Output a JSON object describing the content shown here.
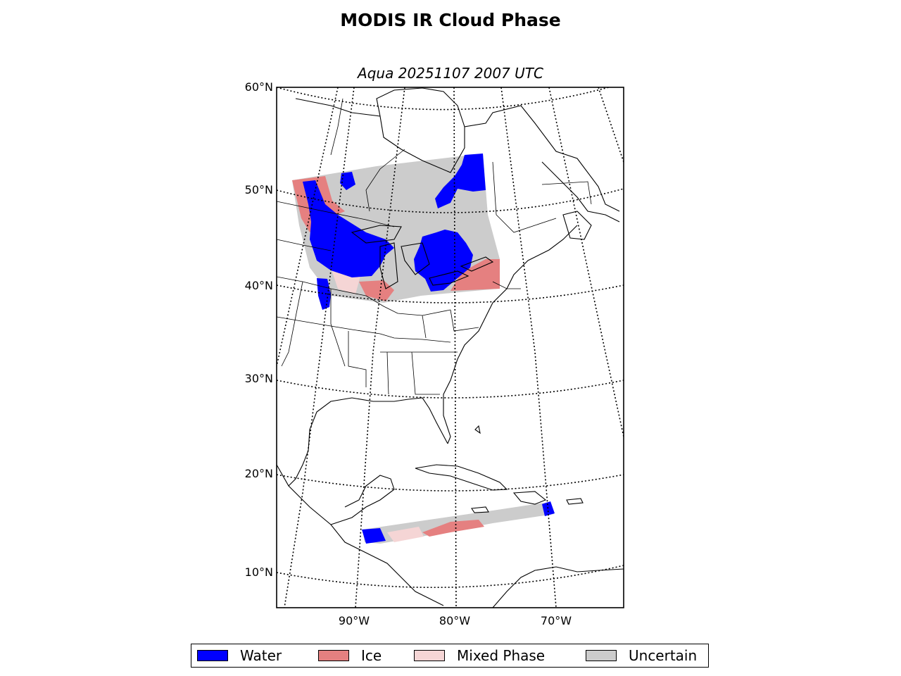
{
  "title": "MODIS IR Cloud Phase",
  "subtitle": "Aqua 20251107 2007 UTC",
  "latitude_labels": [
    "60°N",
    "50°N",
    "40°N",
    "30°N",
    "20°N",
    "10°N"
  ],
  "longitude_labels": [
    "90°W",
    "80°W",
    "70°W"
  ],
  "legend": [
    {
      "label": "Water",
      "color": "#0000ff"
    },
    {
      "label": "Ice",
      "color": "#e58080"
    },
    {
      "label": "Mixed Phase",
      "color": "#f5d5d5"
    },
    {
      "label": "Uncertain",
      "color": "#cccccc"
    }
  ],
  "colors": {
    "water": "#0000ff",
    "ice": "#e58080",
    "mixed_phase": "#f5d5d5",
    "uncertain": "#cccccc",
    "coastline": "#000000",
    "graticule": "#000000"
  }
}
